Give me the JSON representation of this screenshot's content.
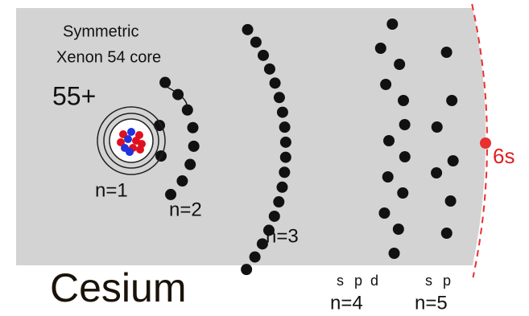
{
  "labels": {
    "core": [
      "Symmetric",
      "Xenon 54 core"
    ],
    "charge": "55+",
    "shells": [
      "n=1",
      "n=2",
      "n=3",
      "n=4",
      "n=5"
    ],
    "subshells_n4": [
      "s",
      "p",
      "d"
    ],
    "subshells_n5": [
      "s",
      "p"
    ],
    "valence": "6s",
    "element": "Cesium"
  }
}
